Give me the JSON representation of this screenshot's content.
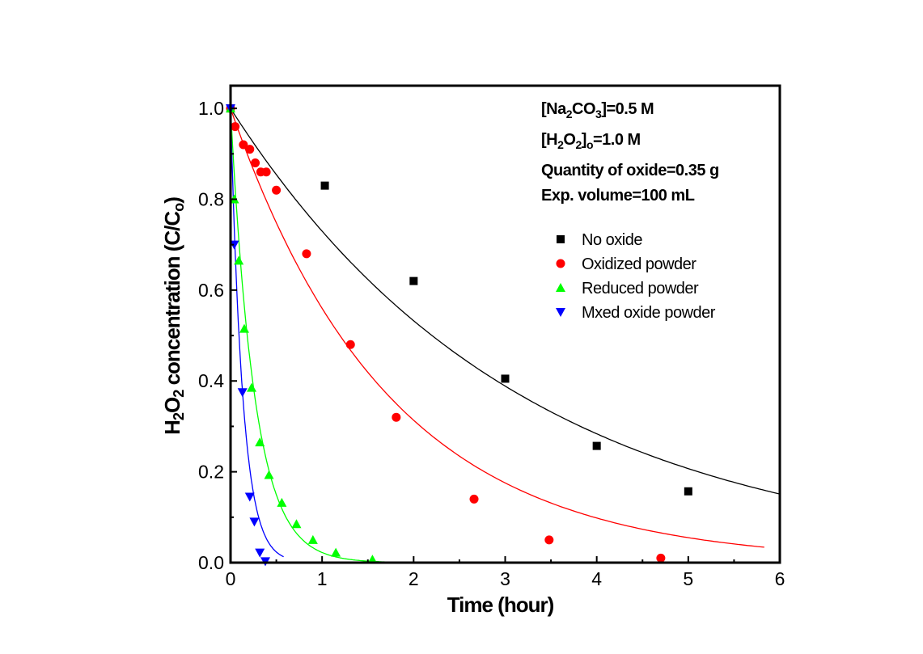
{
  "chart_data": {
    "type": "scatter",
    "xlabel": "Time (hour)",
    "ylabel": {
      "parts": [
        {
          "text": "H",
          "sub": false
        },
        {
          "text": "2",
          "sub": true
        },
        {
          "text": "O",
          "sub": false
        },
        {
          "text": "2",
          "sub": true
        },
        {
          "text": " concentration (C/C",
          "sub": false
        },
        {
          "text": "o",
          "sub": true
        },
        {
          "text": ")",
          "sub": false
        }
      ]
    },
    "xlim": [
      0,
      6
    ],
    "ylim": [
      0,
      1.05
    ],
    "xticks": [
      0,
      1,
      2,
      3,
      4,
      5,
      6
    ],
    "xtick_labels": [
      "0",
      "1",
      "2",
      "3",
      "4",
      "5",
      "6"
    ],
    "yticks": [
      0,
      0.2,
      0.4,
      0.6,
      0.8,
      1.0
    ],
    "ytick_labels": [
      "0.0",
      "0.2",
      "0.4",
      "0.6",
      "0.8",
      "1.0"
    ],
    "grid": false,
    "legend_position": "upper-right",
    "annotations": [
      {
        "parts": [
          {
            "text": "[Na",
            "sub": false
          },
          {
            "text": "2",
            "sub": true
          },
          {
            "text": "CO",
            "sub": false
          },
          {
            "text": "3",
            "sub": true
          },
          {
            "text": "]=0.5 M",
            "sub": false
          }
        ]
      },
      {
        "parts": [
          {
            "text": "[H",
            "sub": false
          },
          {
            "text": "2",
            "sub": true
          },
          {
            "text": "O",
            "sub": false
          },
          {
            "text": "2",
            "sub": true
          },
          {
            "text": "]",
            "sub": false
          },
          {
            "text": "o",
            "sub": true
          },
          {
            "text": "=1.0 M",
            "sub": false
          }
        ]
      },
      {
        "parts": [
          {
            "text": "Quantity of oxide=0.35 g",
            "sub": false
          }
        ]
      },
      {
        "parts": [
          {
            "text": "Exp. volume=100 mL",
            "sub": false
          }
        ]
      }
    ],
    "series": [
      {
        "name": "No oxide",
        "color": "#000000",
        "marker": "square",
        "points": [
          [
            0,
            1.0
          ],
          [
            1.03,
            0.83
          ],
          [
            2.0,
            0.62
          ],
          [
            3.0,
            0.405
          ],
          [
            4.0,
            0.257
          ],
          [
            5.0,
            0.157
          ]
        ],
        "fit": {
          "k": 0.315,
          "x_end": 6.0
        }
      },
      {
        "name": "Oxidized powder",
        "color": "#ff0000",
        "marker": "circle",
        "points": [
          [
            0,
            1.0
          ],
          [
            0.05,
            0.96
          ],
          [
            0.14,
            0.92
          ],
          [
            0.21,
            0.91
          ],
          [
            0.27,
            0.88
          ],
          [
            0.33,
            0.86
          ],
          [
            0.39,
            0.86
          ],
          [
            0.5,
            0.82
          ],
          [
            0.83,
            0.68
          ],
          [
            1.31,
            0.48
          ],
          [
            1.81,
            0.32
          ],
          [
            2.66,
            0.14
          ],
          [
            3.48,
            0.05
          ],
          [
            4.7,
            0.01
          ]
        ],
        "fit": {
          "k": 0.58,
          "x_end": 5.83
        }
      },
      {
        "name": "Reduced powder",
        "color": "#00ff00",
        "marker": "triangle-up",
        "points": [
          [
            0,
            1.0
          ],
          [
            0.04,
            0.8
          ],
          [
            0.09,
            0.665
          ],
          [
            0.15,
            0.515
          ],
          [
            0.23,
            0.385
          ],
          [
            0.32,
            0.265
          ],
          [
            0.42,
            0.193
          ],
          [
            0.56,
            0.132
          ],
          [
            0.72,
            0.085
          ],
          [
            0.9,
            0.05
          ],
          [
            1.15,
            0.022
          ],
          [
            1.55,
            0.007
          ]
        ],
        "fit": {
          "k": 3.8,
          "x_end": 1.85
        }
      },
      {
        "name": "Mixed oxide powder",
        "color": "#0000ff",
        "marker": "triangle-down",
        "points": [
          [
            0,
            1.0
          ],
          [
            0.04,
            0.7
          ],
          [
            0.13,
            0.375
          ],
          [
            0.21,
            0.145
          ],
          [
            0.26,
            0.09
          ],
          [
            0.32,
            0.022
          ],
          [
            0.38,
            0.003
          ]
        ],
        "fit": {
          "k": 7.5,
          "x_end": 0.58
        }
      }
    ],
    "legend_labels": [
      "No oxide",
      "Oxidized powder",
      "Reduced powder",
      "Mxed oxide powder"
    ]
  }
}
